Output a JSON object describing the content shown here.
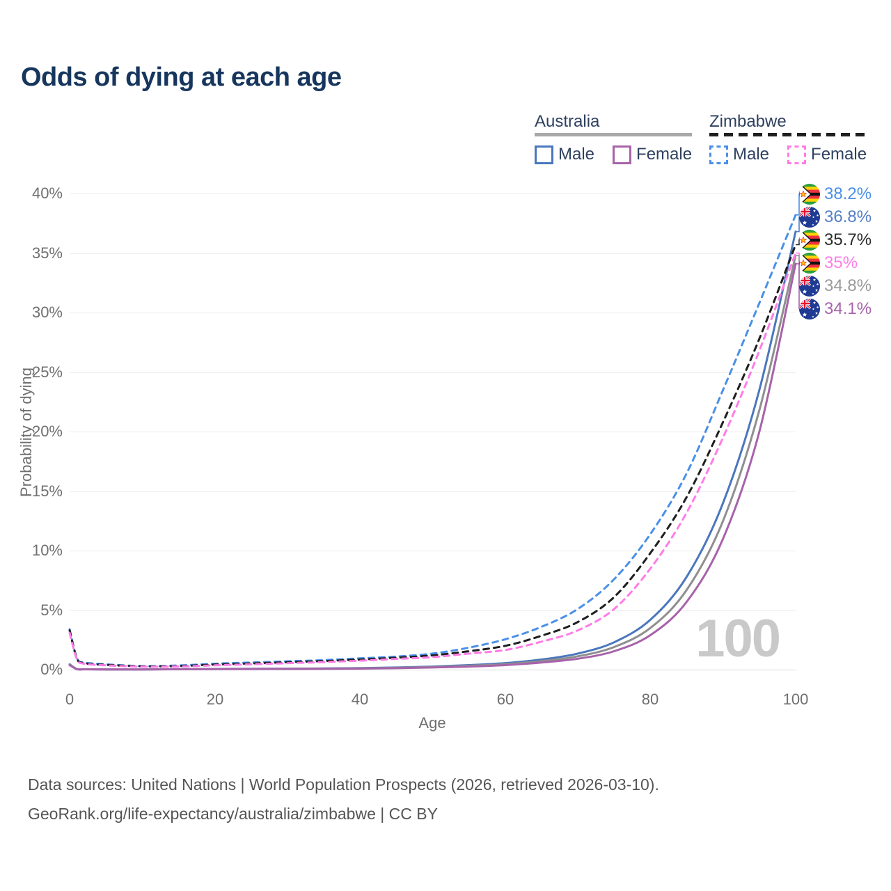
{
  "title": "Odds of dying at each age",
  "legend": {
    "australia": {
      "label": "Australia",
      "male_label": "Male",
      "female_label": "Female",
      "underline_color": "#a8a8a8",
      "male_color": "#4a77bd",
      "female_color": "#a763aa",
      "line_style": "solid"
    },
    "zimbabwe": {
      "label": "Zimbabwe",
      "male_label": "Male",
      "female_label": "Female",
      "underline_color": "#1f1f1f",
      "male_color": "#4a90e8",
      "female_color": "#ff7ce6",
      "line_style": "dashed"
    }
  },
  "chart_data": {
    "type": "line",
    "title": "Odds of dying at each age",
    "xlabel": "Age",
    "ylabel": "Probability of dying",
    "xlim": [
      0,
      100
    ],
    "ylim": [
      0,
      40
    ],
    "x_ticks": [
      0,
      20,
      40,
      60,
      80,
      100
    ],
    "y_ticks": [
      0,
      5,
      10,
      15,
      20,
      25,
      30,
      35,
      40
    ],
    "y_tick_labels": [
      "0%",
      "5%",
      "10%",
      "15%",
      "20%",
      "25%",
      "30%",
      "35%",
      "40%"
    ],
    "grid": "horizontal",
    "legend_position": "top-right",
    "watermark": "100",
    "x": [
      0,
      1,
      2,
      5,
      10,
      15,
      20,
      25,
      30,
      35,
      40,
      45,
      50,
      55,
      60,
      65,
      70,
      75,
      80,
      85,
      90,
      95,
      100
    ],
    "series": [
      {
        "id": "australia_male",
        "name": "Australia Male",
        "color": "#4a77bd",
        "dashed": false,
        "values": [
          0.45,
          0.05,
          0.03,
          0.02,
          0.02,
          0.04,
          0.06,
          0.07,
          0.08,
          0.1,
          0.13,
          0.18,
          0.26,
          0.38,
          0.55,
          0.85,
          1.35,
          2.3,
          4.2,
          7.8,
          14.0,
          23.5,
          36.8
        ]
      },
      {
        "id": "australia_total",
        "name": "Australia (both sexes)",
        "color": "#8f8f8f",
        "dashed": false,
        "values": [
          0.42,
          0.045,
          0.028,
          0.018,
          0.018,
          0.035,
          0.05,
          0.06,
          0.07,
          0.085,
          0.11,
          0.15,
          0.22,
          0.32,
          0.46,
          0.72,
          1.12,
          1.9,
          3.5,
          6.7,
          12.5,
          21.8,
          34.8
        ]
      },
      {
        "id": "australia_female",
        "name": "Australia Female",
        "color": "#a763aa",
        "dashed": false,
        "values": [
          0.38,
          0.04,
          0.025,
          0.016,
          0.016,
          0.03,
          0.04,
          0.05,
          0.06,
          0.07,
          0.09,
          0.12,
          0.18,
          0.26,
          0.38,
          0.6,
          0.92,
          1.55,
          2.9,
          5.7,
          11.0,
          20.0,
          34.1
        ]
      },
      {
        "id": "zimbabwe_male",
        "name": "Zimbabwe Male",
        "color": "#4a90e8",
        "dashed": true,
        "values": [
          3.4,
          1.0,
          0.6,
          0.45,
          0.3,
          0.35,
          0.5,
          0.6,
          0.7,
          0.8,
          0.95,
          1.1,
          1.35,
          1.85,
          2.55,
          3.6,
          5.1,
          7.6,
          11.4,
          16.5,
          23.5,
          30.8,
          38.2
        ]
      },
      {
        "id": "zimbabwe_total",
        "name": "Zimbabwe (both sexes)",
        "color": "#1f1f1f",
        "dashed": true,
        "values": [
          3.3,
          0.95,
          0.55,
          0.4,
          0.28,
          0.3,
          0.42,
          0.52,
          0.62,
          0.72,
          0.85,
          1.0,
          1.2,
          1.55,
          2.0,
          2.85,
          4.0,
          6.1,
          9.8,
          14.5,
          20.8,
          27.8,
          35.7
        ]
      },
      {
        "id": "zimbabwe_female",
        "name": "Zimbabwe Female",
        "color": "#ff7ce6",
        "dashed": true,
        "values": [
          3.1,
          0.9,
          0.5,
          0.36,
          0.25,
          0.27,
          0.36,
          0.45,
          0.54,
          0.64,
          0.75,
          0.9,
          1.05,
          1.35,
          1.65,
          2.35,
          3.3,
          5.1,
          8.5,
          13.2,
          19.5,
          26.8,
          35.0
        ]
      }
    ],
    "end_labels": [
      {
        "series": "zimbabwe_male",
        "flag": "zimbabwe",
        "value": "38.2%",
        "color": "#4a90e8"
      },
      {
        "series": "australia_male",
        "flag": "australia",
        "value": "36.8%",
        "color": "#5580c6"
      },
      {
        "series": "zimbabwe_total",
        "flag": "zimbabwe",
        "value": "35.7%",
        "color": "#2b2b2b"
      },
      {
        "series": "zimbabwe_female",
        "flag": "zimbabwe",
        "value": "35%",
        "color": "#ff7ce6"
      },
      {
        "series": "australia_total",
        "flag": "australia",
        "value": "34.8%",
        "color": "#9b9b9b"
      },
      {
        "series": "australia_female",
        "flag": "australia",
        "value": "34.1%",
        "color": "#a763aa"
      }
    ]
  },
  "footer": {
    "line1": "Data sources: United Nations | World Population Prospects (2026, retrieved 2026-03-10).",
    "line2": "GeoRank.org/life-expectancy/australia/zimbabwe | CC BY"
  },
  "colors": {
    "title": "#17365d",
    "legend_text": "#2f4160",
    "tick_text": "#6f6f6f",
    "gridline": "#ececec",
    "watermark": "#c9c9c9",
    "footer_text": "#555555"
  }
}
